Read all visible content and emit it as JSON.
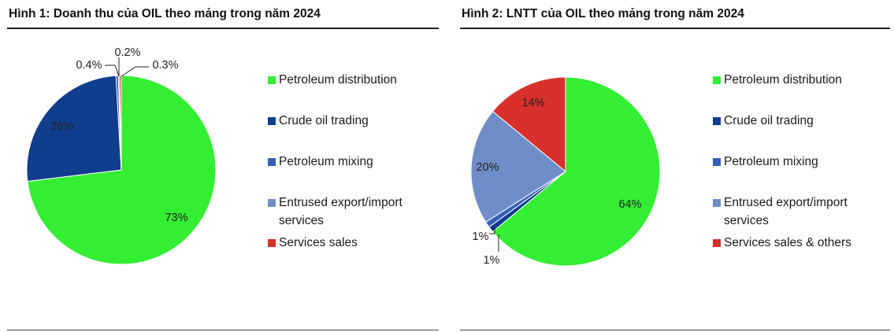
{
  "chart_data": [
    {
      "type": "pie",
      "title": "Hình 1: Doanh thu của OIL theo mảng trong năm 2024",
      "labels": [
        "Petroleum distribution",
        "Crude oil trading",
        "Petroleum mixing",
        "Entrused export/import services",
        "Services sales"
      ],
      "values": [
        73,
        26,
        0.4,
        0.2,
        0.3
      ],
      "value_labels": [
        "73%",
        "26%",
        "0.4%",
        "0.2%",
        "0.3%"
      ],
      "colors": [
        "#33ee33",
        "#103d8c",
        "#3560b6",
        "#6f8ec8",
        "#d8302b"
      ],
      "legend": "right"
    },
    {
      "type": "pie",
      "title": "Hình 2: LNTT của OIL theo mảng trong năm 2024",
      "labels": [
        "Petroleum distribution",
        "Crude oil trading",
        "Petroleum mixing",
        "Entrused export/import services",
        "Services sales & others"
      ],
      "values": [
        64,
        1,
        1,
        20,
        14
      ],
      "value_labels": [
        "64%",
        "1%",
        "1%",
        "20%",
        "14%"
      ],
      "colors": [
        "#33ee33",
        "#103d8c",
        "#3560b6",
        "#6f8ec8",
        "#d8302b"
      ],
      "legend": "right"
    }
  ]
}
